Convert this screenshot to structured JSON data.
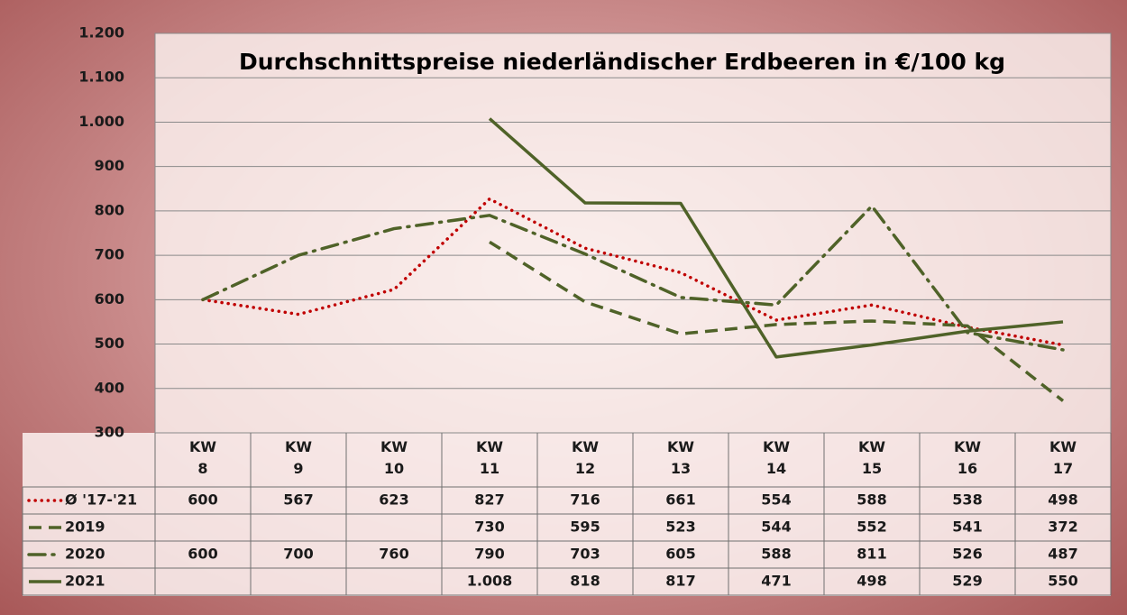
{
  "chart_data": {
    "type": "line",
    "title": "Durchschnittspreise niederländischer Erdbeeren in €/100 kg",
    "categories": [
      "KW 8",
      "KW 9",
      "KW 10",
      "KW 11",
      "KW 12",
      "KW 13",
      "KW 14",
      "KW 15",
      "KW 16",
      "KW 17"
    ],
    "series": [
      {
        "name": "Ø '17-'21",
        "color": "#c00000",
        "style": "dotted",
        "values": [
          600,
          567,
          623,
          827,
          716,
          661,
          554,
          588,
          538,
          498
        ],
        "value_labels": [
          "600",
          "567",
          "623",
          "827",
          "716",
          "661",
          "554",
          "588",
          "538",
          "498"
        ]
      },
      {
        "name": "2019",
        "color": "#4f6228",
        "style": "dashed",
        "values": [
          null,
          null,
          null,
          730,
          595,
          523,
          544,
          552,
          541,
          372
        ],
        "value_labels": [
          null,
          null,
          null,
          "730",
          "595",
          "523",
          "544",
          "552",
          "541",
          "372"
        ]
      },
      {
        "name": "2020",
        "color": "#4f6228",
        "style": "dashdot",
        "values": [
          600,
          700,
          760,
          790,
          703,
          605,
          588,
          811,
          526,
          487
        ],
        "value_labels": [
          "600",
          "700",
          "760",
          "790",
          "703",
          "605",
          "588",
          "811",
          "526",
          "487"
        ]
      },
      {
        "name": "2021",
        "color": "#4f6228",
        "style": "solid",
        "values": [
          null,
          null,
          null,
          1008,
          818,
          817,
          471,
          498,
          529,
          550
        ],
        "value_labels": [
          null,
          null,
          null,
          "1.008",
          "818",
          "817",
          "471",
          "498",
          "529",
          "550"
        ]
      }
    ],
    "ylim": [
      300,
      1200
    ],
    "yticks": [
      300,
      400,
      500,
      600,
      700,
      800,
      900,
      {
        "value": 1000,
        "label": "1.000"
      },
      {
        "value": 1100,
        "label": "1.100"
      },
      {
        "value": 1200,
        "label": "1.200"
      }
    ],
    "grid": true
  }
}
